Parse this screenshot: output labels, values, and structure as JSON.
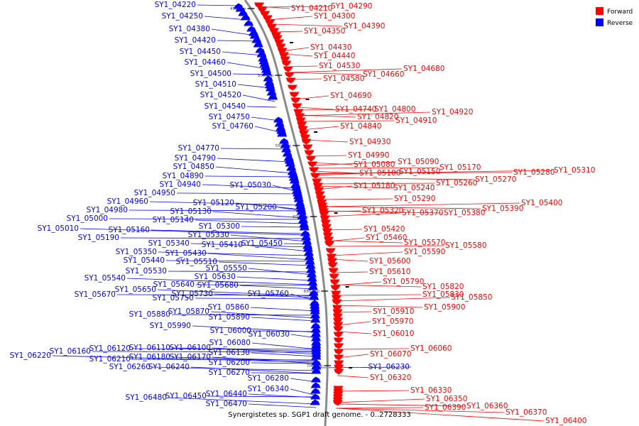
{
  "caption": "Synergistetes sp. SGP1 draft genome. - 0..2728333",
  "legend": [
    {
      "label": "Forward",
      "color": "#ff0000"
    },
    {
      "label": "Reverse",
      "color": "#0000ff"
    }
  ],
  "colors": {
    "forward": "#ff0000",
    "reverse": "#0000ff",
    "backbone": "#8a8a8a"
  },
  "ticks": [
    "450 kbp",
    "500 kbp",
    "550 kbp",
    "600 kbp",
    "650 kbp",
    "700 kbp"
  ],
  "reverse_labels": [
    "SY1_04220",
    "SY1_04250",
    "SY1_04380",
    "SY1_04420",
    "SY1_04450",
    "SY1_04460",
    "SY1_04500",
    "SY1_04510",
    "SY1_04520",
    "SY1_04540",
    "SY1_04750",
    "SY1_04760",
    "SY1_04770",
    "SY1_04790",
    "SY1_04850",
    "SY1_04890",
    "SY1_04940",
    "SY1_05030",
    "SY1_04950",
    "SY1_04960",
    "SY1_05120",
    "SY1_04980",
    "SY1_05200",
    "SY1_05130",
    "SY1_05000",
    "SY1_05140",
    "SY1_05010",
    "SY1_05300",
    "SY1_05160",
    "SY1_05330",
    "SY1_05190",
    "SY1_05340",
    "SY1_05410",
    "SY1_05450",
    "SY1_05350",
    "SY1_05430",
    "SY1_05440",
    "SY1_05510",
    "SY1_05550",
    "SY1_05530",
    "SY1_05630",
    "SY1_05540",
    "SY1_05640",
    "SY1_05680",
    "SY1_05650",
    "SY1_05750",
    "SY1_05730",
    "SY1_05760",
    "SY1_05670",
    "SY1_05860",
    "SY1_05870",
    "SY1_05880",
    "SY1_05890",
    "SY1_05990",
    "SY1_06000",
    "SY1_06030",
    "SY1_06080",
    "SY1_06120",
    "SY1_06110",
    "SY1_06100",
    "SY1_06160",
    "SY1_06130",
    "SY1_06220",
    "SY1_06210",
    "SY1_06180",
    "SY1_06170",
    "SY1_06200",
    "SY1_06260",
    "SY1_06240",
    "SY1_06270",
    "SY1_06280",
    "SY1_06340",
    "SY1_06230",
    "SY1_06440",
    "SY1_06480",
    "SY1_06450",
    "SY1_06470"
  ],
  "forward_labels": [
    "SY1_04210",
    "SY1_04290",
    "SY1_04300",
    "SY1_04390",
    "SY1_04350",
    "SY1_04430",
    "SY1_04440",
    "SY1_04530",
    "SY1_04680",
    "SY1_04660",
    "SY1_04580",
    "SY1_04690",
    "SY1_04740",
    "SY1_04800",
    "SY1_04920",
    "SY1_04820",
    "SY1_04910",
    "SY1_04840",
    "SY1_04930",
    "SY1_04990",
    "SY1_05090",
    "SY1_05080",
    "SY1_05170",
    "SY1_05150",
    "SY1_05100",
    "SY1_05280",
    "SY1_05310",
    "SY1_05270",
    "SY1_05260",
    "SY1_05180",
    "SY1_05240",
    "SY1_05290",
    "SY1_05400",
    "SY1_05390",
    "SY1_05320",
    "SY1_05370",
    "SY1_05380",
    "SY1_05420",
    "SY1_05460",
    "SY1_05570",
    "SY1_05580",
    "SY1_05590",
    "SY1_05600",
    "SY1_05610",
    "SY1_05790",
    "SY1_05820",
    "SY1_05830",
    "SY1_05850",
    "SY1_05900",
    "SY1_05910",
    "SY1_05970",
    "SY1_06010",
    "SY1_06060",
    "SY1_06070",
    "SY1_06320",
    "SY1_06330",
    "SY1_06350",
    "SY1_06360",
    "SY1_06390",
    "SY1_06370",
    "SY1_06400"
  ]
}
